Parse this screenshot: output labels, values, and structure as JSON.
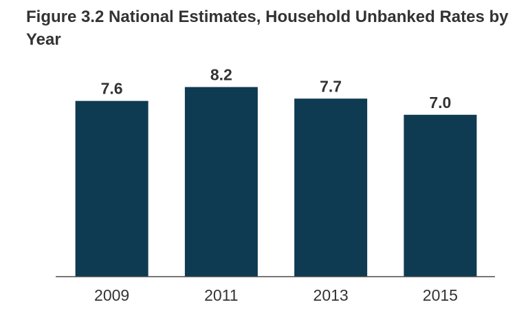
{
  "chart_data": {
    "type": "bar",
    "title": "Figure 3.2 National Estimates, Household Unbanked Rates by Year",
    "categories": [
      "2009",
      "2011",
      "2013",
      "2015"
    ],
    "values": [
      7.6,
      8.2,
      7.7,
      7.0
    ],
    "value_labels": [
      "7.6",
      "8.2",
      "7.7",
      "7.0"
    ],
    "xlabel": "",
    "ylabel": "",
    "ylim": [
      0,
      10
    ],
    "grid": false,
    "legend": "none",
    "bar_color": "#0e3a52",
    "text_color": "#333333"
  }
}
